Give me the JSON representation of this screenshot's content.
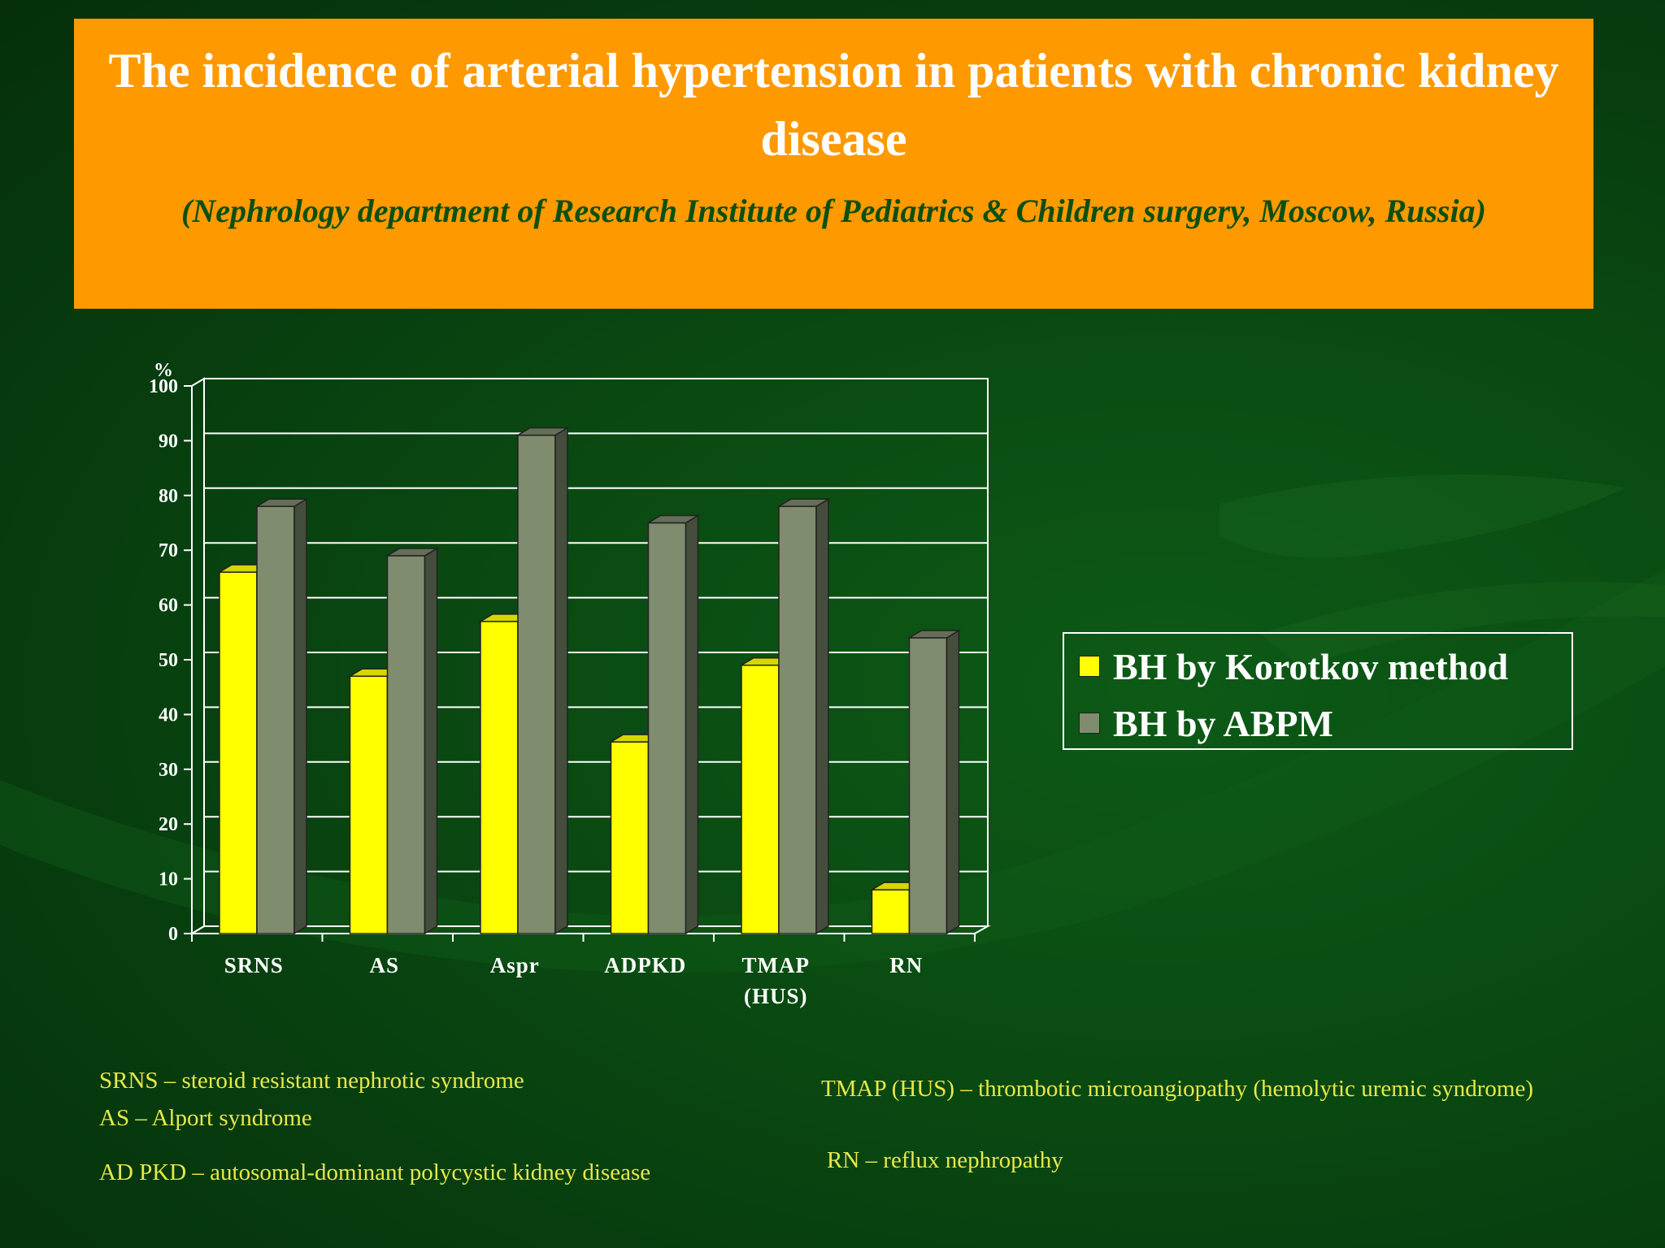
{
  "header": {
    "title": "The incidence of arterial hypertension in patients with chronic kidney disease",
    "subtitle": "(Nephrology department of Research Institute of Pediatrics & Children surgery, Moscow, Russia)"
  },
  "colors": {
    "header_bg": "#ff9900",
    "background": "#0a4a12",
    "korotkov": "#ffff00",
    "abpm": "#7f8c6e",
    "axis": "#ffffff",
    "footnote": "#e8e84a"
  },
  "chart_data": {
    "type": "bar",
    "style": "3d-clustered",
    "ylabel": "%",
    "ylim": [
      0,
      100
    ],
    "yticks": [
      0,
      10,
      20,
      30,
      40,
      50,
      60,
      70,
      80,
      90,
      100
    ],
    "grid": true,
    "categories": [
      "SRNS",
      "AS",
      "Aspr",
      "ADPKD",
      "TMAP\n(HUS)",
      "RN"
    ],
    "series": [
      {
        "name": "BH by Korotkov method",
        "values": [
          66,
          47,
          57,
          35,
          49,
          8
        ]
      },
      {
        "name": "BH by ABPM",
        "values": [
          78,
          69,
          91,
          75,
          78,
          54
        ]
      }
    ],
    "legend_position": "right"
  },
  "footnotes": {
    "srns": "SRNS – steroid resistant nephrotic syndrome",
    "as": "AS – Alport syndrome",
    "adpkd": "AD PKD – autosomal-dominant polycystic kidney disease",
    "tmap": "TMAP (HUS) – thrombotic microangiopathy (hemolytic uremic syndrome)",
    "rn": "RN – reflux nephropathy"
  }
}
